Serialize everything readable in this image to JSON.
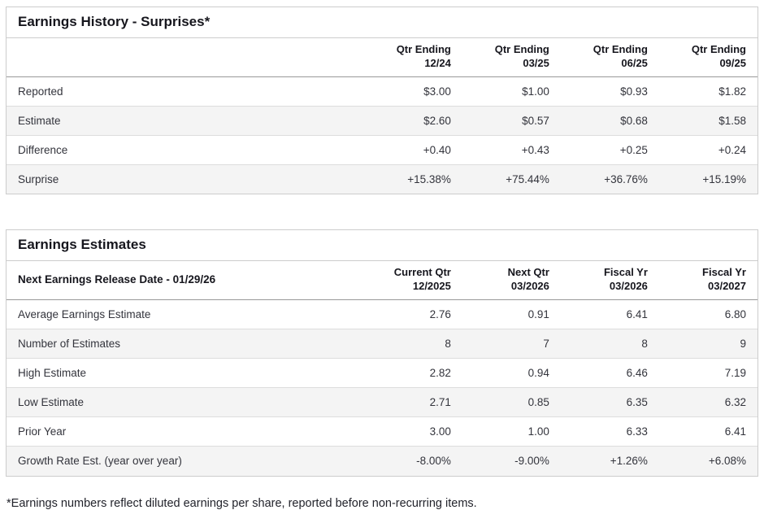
{
  "colors": {
    "positive_value": "#35937a",
    "negative_value": "#c7434e",
    "header_text": "#16161d",
    "body_text": "#33343c",
    "row_alt_bg": "#f4f4f4",
    "panel_border": "#cccccc",
    "header_rule": "#999999",
    "row_divider": "#dddddd"
  },
  "earnings_history": {
    "title": "Earnings History - Surprises*",
    "columns": [
      {
        "line1": "Qtr Ending",
        "line2": "12/24"
      },
      {
        "line1": "Qtr Ending",
        "line2": "03/25"
      },
      {
        "line1": "Qtr Ending",
        "line2": "06/25"
      },
      {
        "line1": "Qtr Ending",
        "line2": "09/25"
      }
    ],
    "rows": [
      {
        "label": "Reported",
        "values": [
          "$3.00",
          "$1.00",
          "$0.93",
          "$1.82"
        ]
      },
      {
        "label": "Estimate",
        "values": [
          "$2.60",
          "$0.57",
          "$0.68",
          "$1.58"
        ]
      },
      {
        "label": "Difference",
        "values": [
          "+0.40",
          "+0.43",
          "+0.25",
          "+0.24"
        ]
      },
      {
        "label": "Surprise",
        "values": [
          "+15.38%",
          "+75.44%",
          "+36.76%",
          "+15.19%"
        ]
      }
    ]
  },
  "earnings_estimates": {
    "title": "Earnings Estimates",
    "release_date_label": "Next Earnings Release Date - 01/29/26",
    "columns": [
      {
        "line1": "Current Qtr",
        "line2": "12/2025"
      },
      {
        "line1": "Next Qtr",
        "line2": "03/2026"
      },
      {
        "line1": "Fiscal Yr",
        "line2": "03/2026"
      },
      {
        "line1": "Fiscal Yr",
        "line2": "03/2027"
      }
    ],
    "rows": [
      {
        "label": "Average Earnings Estimate",
        "values": [
          "2.76",
          "0.91",
          "6.41",
          "6.80"
        ]
      },
      {
        "label": "Number of Estimates",
        "values": [
          "8",
          "7",
          "8",
          "9"
        ]
      },
      {
        "label": "High Estimate",
        "values": [
          "2.82",
          "0.94",
          "6.46",
          "7.19"
        ]
      },
      {
        "label": "Low Estimate",
        "values": [
          "2.71",
          "0.85",
          "6.35",
          "6.32"
        ]
      },
      {
        "label": "Prior Year",
        "values": [
          "3.00",
          "1.00",
          "6.33",
          "6.41"
        ]
      },
      {
        "label": "Growth Rate Est. (year over year)",
        "values": [
          "-8.00%",
          "-9.00%",
          "+1.26%",
          "+6.08%"
        ]
      }
    ]
  },
  "footnote": "*Earnings numbers reflect diluted earnings per share, reported before non-recurring items."
}
